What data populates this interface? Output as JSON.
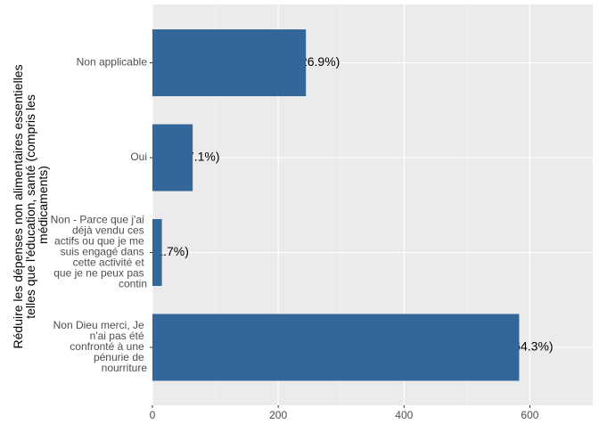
{
  "chart_data": {
    "type": "bar",
    "orientation": "horizontal",
    "y_label": "Réduire les dépenses non alimentaires essentielles telles que l'éducation, santé (compris les médicaments)",
    "categories": [
      "Non applicable",
      "Oui",
      "Non - Parce que j'ai déjà vendu ces actifs ou que je me suis engagé dans cette activité et que je ne peux pas contin",
      "Non Dieu merci, Je n'ai pas été confronté à une pénurie de nourriture"
    ],
    "values": [
      244,
      64,
      15,
      583
    ],
    "value_labels": [
      "244 (26.9%)",
      "64 (7.1%)",
      "15 (1.7%)",
      "583 (64.3%)"
    ],
    "color": "#336699",
    "xlim": [
      0,
      700
    ],
    "xticks": [
      0,
      200,
      400,
      600
    ],
    "grid": true
  }
}
